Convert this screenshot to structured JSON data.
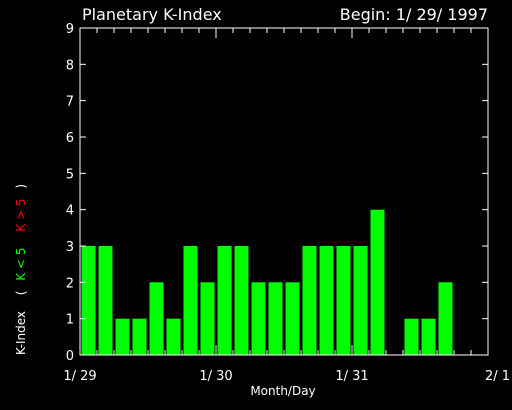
{
  "chart_data": {
    "type": "bar",
    "title": "Planetary K-Index",
    "subtitle": "Begin: 1/ 29/ 1997",
    "xlabel": "Month/Day",
    "ylabel": "K-Index",
    "legend": {
      "open_paren": "(",
      "low_label": "K < 5",
      "high_label": "K > 5",
      "close_paren": ")"
    },
    "ylim": [
      0,
      9
    ],
    "yticks": [
      "0",
      "1",
      "2",
      "3",
      "4",
      "5",
      "6",
      "7",
      "8",
      "9"
    ],
    "xticks": [
      "1/ 29",
      "1/ 30",
      "1/ 31",
      "2/ 1"
    ],
    "values": [
      3,
      3,
      1,
      1,
      2,
      1,
      3,
      2,
      3,
      3,
      2,
      2,
      2,
      3,
      3,
      3,
      3,
      4,
      0,
      1,
      1,
      2,
      0,
      0
    ],
    "bar_color": "#00ff00",
    "high_color": "#ff0000",
    "axis_color": "#ffffff",
    "background": "#000000"
  }
}
